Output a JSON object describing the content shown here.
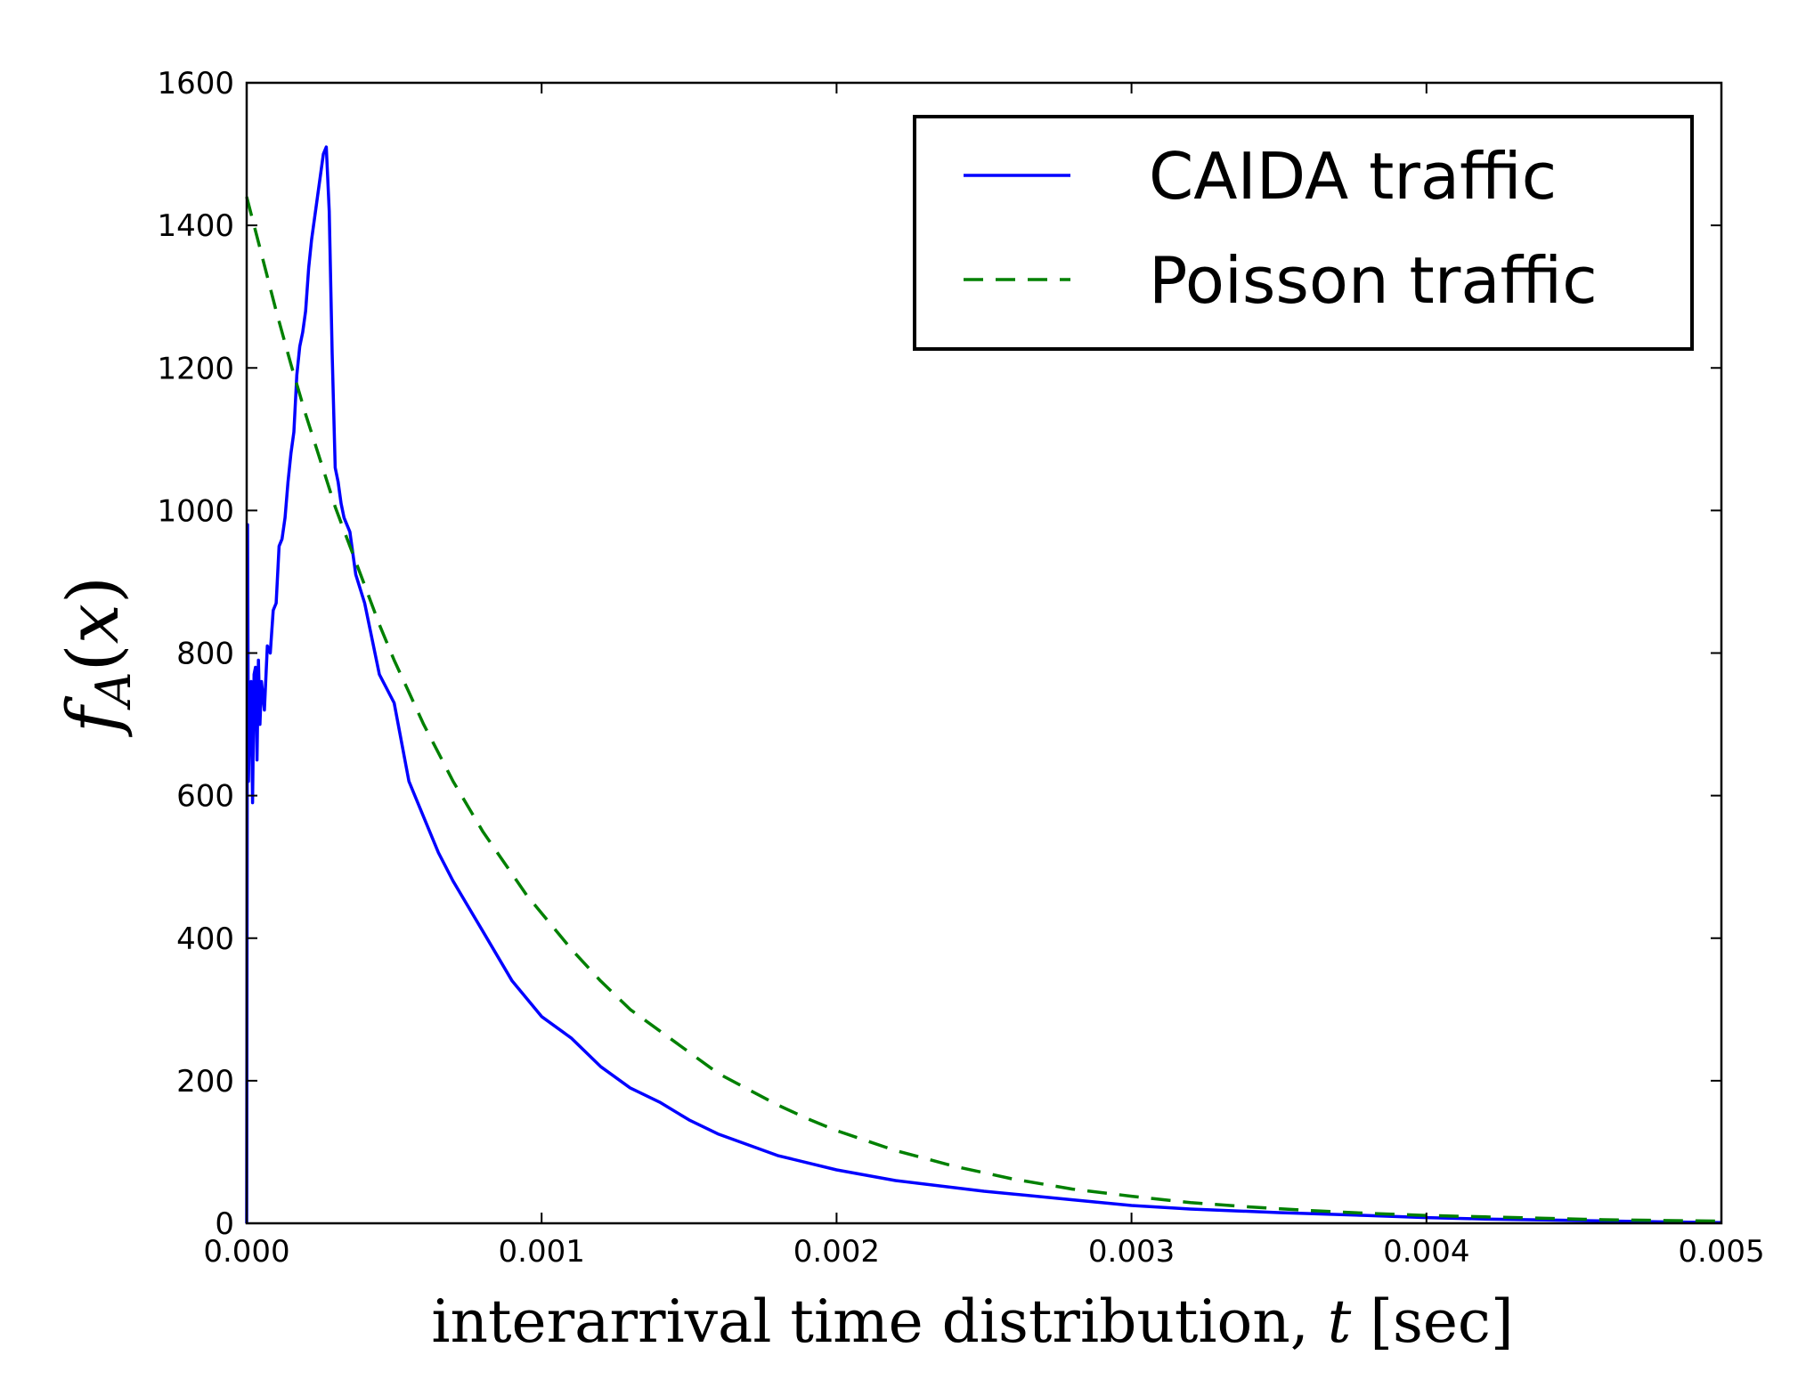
{
  "chart_data": {
    "type": "line",
    "xlabel": "interarrival time distribution, t [sec]",
    "xlabel_parts": {
      "prefix": "interarrival time distribution, ",
      "var": "t",
      "suffix": " [sec]"
    },
    "ylabel": "f_A(x)",
    "ylabel_parts": {
      "f": "f",
      "sub": "A",
      "open": "(",
      "var": "x",
      "close": ")"
    },
    "xlim": [
      0,
      0.005
    ],
    "ylim": [
      0,
      1600
    ],
    "xticks": [
      0.0,
      0.001,
      0.002,
      0.003,
      0.004,
      0.005
    ],
    "xtick_labels": [
      "0.000",
      "0.001",
      "0.002",
      "0.003",
      "0.004",
      "0.005"
    ],
    "yticks": [
      0,
      200,
      400,
      600,
      800,
      1000,
      1200,
      1400,
      1600
    ],
    "ytick_labels": [
      "0",
      "200",
      "400",
      "600",
      "800",
      "1000",
      "1200",
      "1400",
      "1600"
    ],
    "legend_position": "top-right",
    "grid": false,
    "series": [
      {
        "name": "CAIDA traffic",
        "color": "#0000ff",
        "style": "solid",
        "x": [
          0.0,
          3e-06,
          6e-06,
          1e-05,
          1.5e-05,
          2e-05,
          2.5e-05,
          3e-05,
          3.5e-05,
          4e-05,
          4.5e-05,
          5e-05,
          6e-05,
          7e-05,
          8e-05,
          9e-05,
          0.0001,
          0.00011,
          0.00012,
          0.00013,
          0.00014,
          0.00015,
          0.00016,
          0.00017,
          0.00018,
          0.00019,
          0.0002,
          0.00021,
          0.00022,
          0.00023,
          0.00024,
          0.00025,
          0.00026,
          0.00027,
          0.00028,
          0.00029,
          0.0003,
          0.00031,
          0.00032,
          0.00033,
          0.00035,
          0.00037,
          0.0004,
          0.00042,
          0.00045,
          0.0005,
          0.00055,
          0.0006,
          0.00065,
          0.0007,
          0.0008,
          0.0009,
          0.001,
          0.0011,
          0.0012,
          0.0013,
          0.0014,
          0.0015,
          0.0016,
          0.0018,
          0.002,
          0.0022,
          0.0025,
          0.0028,
          0.003,
          0.0032,
          0.0035,
          0.0038,
          0.004,
          0.0042,
          0.0045,
          0.0048,
          0.005
        ],
        "values": [
          0,
          980,
          620,
          720,
          760,
          590,
          770,
          780,
          650,
          790,
          700,
          760,
          720,
          810,
          800,
          860,
          870,
          950,
          960,
          990,
          1040,
          1080,
          1110,
          1190,
          1230,
          1250,
          1280,
          1340,
          1380,
          1410,
          1440,
          1470,
          1500,
          1510,
          1420,
          1220,
          1060,
          1040,
          1010,
          990,
          970,
          910,
          870,
          830,
          770,
          730,
          620,
          570,
          520,
          480,
          410,
          340,
          290,
          260,
          220,
          190,
          170,
          145,
          125,
          95,
          75,
          60,
          45,
          33,
          25,
          20,
          15,
          11,
          8,
          6,
          4,
          2,
          1
        ]
      },
      {
        "name": "Poisson traffic",
        "color": "#008000",
        "style": "dashed",
        "x": [
          0.0,
          5e-05,
          0.0001,
          0.00015,
          0.0002,
          0.00025,
          0.0003,
          0.00035,
          0.0004,
          0.00045,
          0.0005,
          0.00055,
          0.0006,
          0.00065,
          0.0007,
          0.00075,
          0.0008,
          0.00085,
          0.0009,
          0.00095,
          0.001,
          0.0011,
          0.0012,
          0.0013,
          0.0014,
          0.0015,
          0.0016,
          0.0017,
          0.0018,
          0.0019,
          0.002,
          0.0022,
          0.0024,
          0.0026,
          0.0028,
          0.003,
          0.0032,
          0.0034,
          0.0036,
          0.0038,
          0.004,
          0.0042,
          0.0044,
          0.0046,
          0.0048,
          0.005
        ],
        "values": [
          1440,
          1360,
          1280,
          1205,
          1135,
          1070,
          1005,
          950,
          895,
          840,
          790,
          745,
          700,
          660,
          620,
          585,
          550,
          520,
          490,
          460,
          435,
          385,
          340,
          300,
          270,
          240,
          210,
          188,
          166,
          147,
          130,
          102,
          80,
          62,
          48,
          38,
          29,
          23,
          18,
          14,
          11,
          9,
          7,
          5,
          4,
          3
        ]
      }
    ]
  }
}
